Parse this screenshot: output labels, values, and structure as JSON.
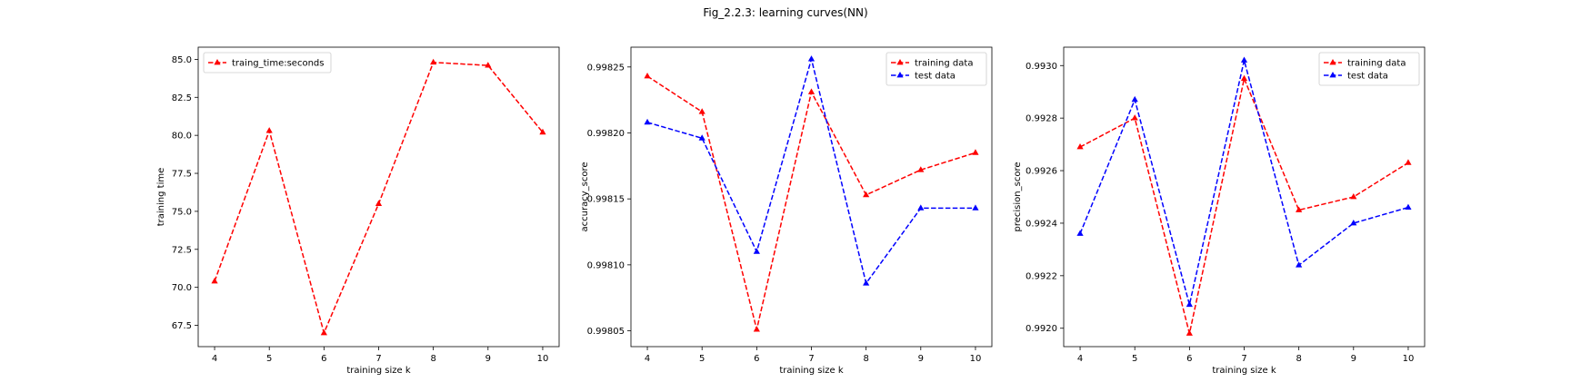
{
  "figure": {
    "title": "Fig_2.2.3: learning curves(NN)"
  },
  "colors": {
    "red": "#ff0000",
    "blue": "#0000ff",
    "axis": "#000000"
  },
  "chart_data": [
    {
      "type": "line",
      "xlabel": "training size k",
      "ylabel": "training time",
      "x": [
        4,
        5,
        6,
        7,
        8,
        9,
        10
      ],
      "xlim": [
        3.7,
        10.3
      ],
      "ylim": [
        66.1,
        85.8
      ],
      "xticks": [
        4,
        5,
        6,
        7,
        8,
        9,
        10
      ],
      "yticks": [
        "67.5",
        "70.0",
        "72.5",
        "75.0",
        "77.5",
        "80.0",
        "82.5",
        "85.0"
      ],
      "legend": "upper-left",
      "series": [
        {
          "name": "traing_time:seconds",
          "color": "#ff0000",
          "values": [
            70.4,
            80.3,
            67.0,
            75.5,
            84.8,
            84.6,
            80.2
          ]
        }
      ]
    },
    {
      "type": "line",
      "xlabel": "training size k",
      "ylabel": "accuracy_score",
      "x": [
        4,
        5,
        6,
        7,
        8,
        9,
        10
      ],
      "xlim": [
        3.7,
        10.3
      ],
      "ylim": [
        0.998038,
        0.998265
      ],
      "xticks": [
        4,
        5,
        6,
        7,
        8,
        9,
        10
      ],
      "yticks": [
        "0.99805",
        "0.99810",
        "0.99815",
        "0.99820",
        "0.99825"
      ],
      "legend": "upper-right",
      "series": [
        {
          "name": "training data",
          "color": "#ff0000",
          "values": [
            0.998243,
            0.998216,
            0.998051,
            0.998231,
            0.998153,
            0.998172,
            0.998185
          ]
        },
        {
          "name": "test data",
          "color": "#0000ff",
          "values": [
            0.998208,
            0.998196,
            0.99811,
            0.998256,
            0.998086,
            0.998143,
            0.998143
          ]
        }
      ]
    },
    {
      "type": "line",
      "xlabel": "training size k",
      "ylabel": "precision_score",
      "x": [
        4,
        5,
        6,
        7,
        8,
        9,
        10
      ],
      "xlim": [
        3.7,
        10.3
      ],
      "ylim": [
        0.99193,
        0.99307
      ],
      "xticks": [
        4,
        5,
        6,
        7,
        8,
        9,
        10
      ],
      "yticks": [
        "0.9920",
        "0.9922",
        "0.9924",
        "0.9926",
        "0.9928",
        "0.9930"
      ],
      "legend": "upper-right",
      "series": [
        {
          "name": "training data",
          "color": "#ff0000",
          "values": [
            0.99269,
            0.9928,
            0.99198,
            0.99295,
            0.99245,
            0.9925,
            0.99263
          ]
        },
        {
          "name": "test data",
          "color": "#0000ff",
          "values": [
            0.99236,
            0.99287,
            0.99209,
            0.99302,
            0.99224,
            0.9924,
            0.99246
          ]
        }
      ]
    }
  ]
}
